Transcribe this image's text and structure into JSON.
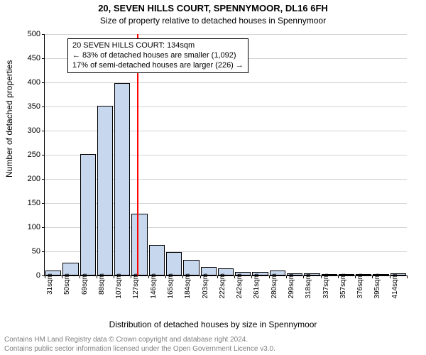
{
  "header": {
    "title": "20, SEVEN HILLS COURT, SPENNYMOOR, DL16 6FH",
    "subtitle": "Size of property relative to detached houses in Spennymoor"
  },
  "axes": {
    "ylabel": "Number of detached properties",
    "xlabel": "Distribution of detached houses by size in Spennymoor"
  },
  "chart": {
    "type": "histogram",
    "ylim": [
      0,
      500
    ],
    "ytick_step": 50,
    "bar_color": "#c6d7ee",
    "bar_border_color": "#000000",
    "grid_color": "#d3d3d3",
    "background_color": "#ffffff",
    "x_categories": [
      "31sqm",
      "50sqm",
      "69sqm",
      "88sqm",
      "107sqm",
      "127sqm",
      "146sqm",
      "165sqm",
      "184sqm",
      "203sqm",
      "222sqm",
      "242sqm",
      "261sqm",
      "280sqm",
      "299sqm",
      "318sqm",
      "337sqm",
      "357sqm",
      "376sqm",
      "395sqm",
      "414sqm"
    ],
    "bar_values": [
      10,
      26,
      252,
      352,
      398,
      128,
      63,
      48,
      32,
      18,
      15,
      7,
      7,
      10,
      5,
      4,
      3,
      3,
      3,
      3,
      5
    ],
    "marker": {
      "color": "#ff0000",
      "between_index": 5
    }
  },
  "annotation": {
    "line1": "20 SEVEN HILLS COURT: 134sqm",
    "line2": "← 83% of detached houses are smaller (1,092)",
    "line3": "17% of semi-detached houses are larger (226) →"
  },
  "footer": {
    "line1": "Contains HM Land Registry data © Crown copyright and database right 2024.",
    "line2": "Contains public sector information licensed under the Open Government Licence v3.0."
  }
}
